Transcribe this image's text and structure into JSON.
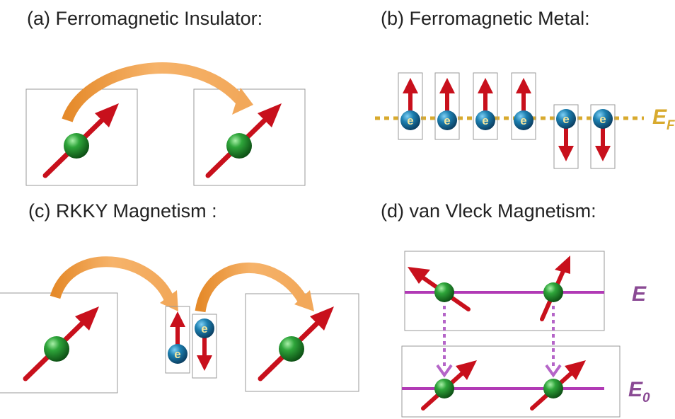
{
  "panels": {
    "a": {
      "title": "(a)   Ferromagnetic Insulator:"
    },
    "b": {
      "title": "(b)   Ferromagnetic Metal:",
      "fermi_label": "E",
      "fermi_sub": "F"
    },
    "c": {
      "title": "(c)   RKKY Magnetism :"
    },
    "d": {
      "title": "(d)   van Vleck Magnetism:",
      "upper_label": "E",
      "lower_label": "E",
      "lower_sub": "0"
    }
  },
  "electron_letter": "e",
  "colors": {
    "spin_arrow": "#c8101c",
    "atom": "#1f8a2e",
    "electron": "#1a7aa6",
    "transfer_arrow": "#f0a04a",
    "fermi_line": "#d8aa2e",
    "level_line": "#b13ab5",
    "virtual_transition": "#b565c8",
    "level_label": "#8a4a94"
  }
}
